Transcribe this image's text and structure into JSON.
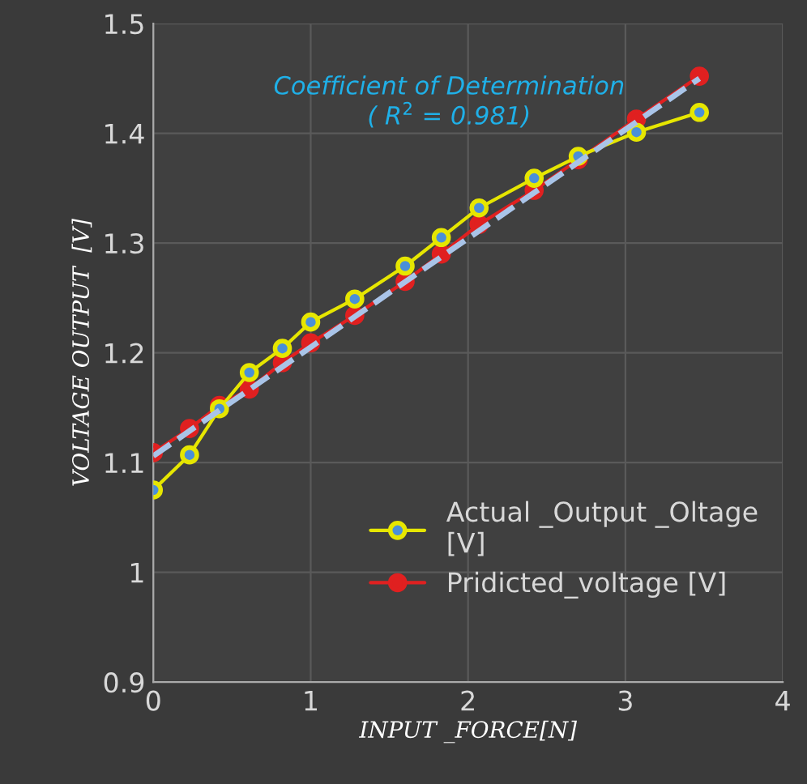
{
  "chart_data": {
    "type": "line",
    "xlabel": "INPUT _FORCE[N]",
    "ylabel": "VOLTAGE OUTPUT  [V]",
    "annotations": [
      "Coefficient of Determination\n( R$^{2}$ = 0.981)"
    ],
    "xlim": [
      0,
      4
    ],
    "xticks": [
      0,
      1,
      2,
      3,
      4
    ],
    "ylim": [
      0.9,
      1.5
    ],
    "yticks": [
      0.9,
      1,
      1.1,
      1.2,
      1.3,
      1.4,
      1.5
    ],
    "grid": true,
    "legend": "bottom right",
    "marker": "circle",
    "series": [
      {
        "name": "Actual _Output _Oltage [V]",
        "color": "#e6e600",
        "x": [
          0,
          0.23,
          0.42,
          0.61,
          0.82,
          1.0,
          1.28,
          1.6,
          1.83,
          2.07,
          2.42,
          2.7,
          3.07,
          3.47
        ],
        "values": [
          1.075,
          1.107,
          1.149,
          1.182,
          1.204,
          1.228,
          1.249,
          1.279,
          1.305,
          1.332,
          1.359,
          1.379,
          1.401,
          1.419
        ]
      },
      {
        "name": "Pridicted_voltage [V]",
        "color": "#e02020",
        "x": [
          0,
          0.23,
          0.42,
          0.61,
          0.82,
          1.0,
          1.28,
          1.6,
          1.83,
          2.07,
          2.42,
          2.7,
          3.07,
          3.47
        ],
        "values": [
          1.109,
          1.131,
          1.152,
          1.167,
          1.191,
          1.209,
          1.234,
          1.265,
          1.29,
          1.317,
          1.348,
          1.376,
          1.413,
          1.452
        ]
      },
      {
        "color": "#a9c4e8",
        "line_style": "dashed",
        "marker": "none",
        "x": [
          0,
          3.47
        ],
        "values": [
          1.106,
          1.45
        ]
      }
    ]
  }
}
